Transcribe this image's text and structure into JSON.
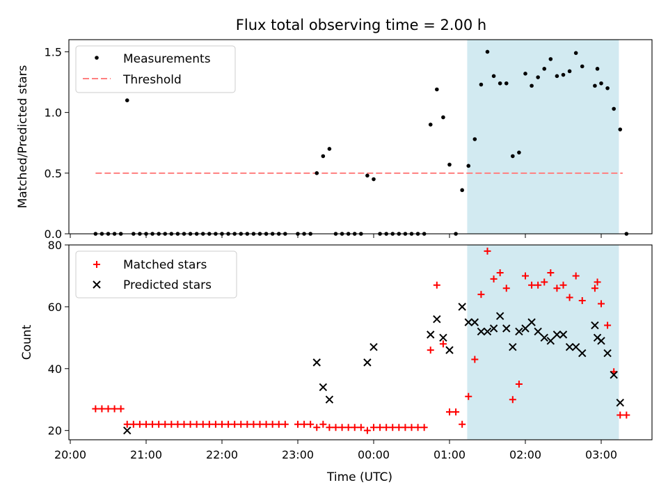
{
  "title": "Flux total observing time = 2.00 h",
  "colors": {
    "span": "#add8e6",
    "threshold": "#ff7f7f",
    "matched": "#ff0000",
    "predicted": "#000000",
    "measurement": "#000000"
  },
  "chart_data": [
    {
      "type": "scatter",
      "ylabel": "Matched/Predicted stars",
      "ylim": [
        0,
        1.6
      ],
      "yticks": [
        0.0,
        0.5,
        1.0,
        1.5
      ],
      "ytick_labels": [
        "0.0",
        "0.5",
        "1.0",
        "1.5"
      ],
      "shaded_span": [
        "01:14",
        "03:14"
      ],
      "threshold": {
        "name": "Threshold",
        "value": 0.5,
        "x_start": "20:20",
        "x_end": "03:17"
      },
      "legend": {
        "placement": "top-left",
        "entries": [
          "Measurements",
          "Threshold"
        ]
      },
      "series": [
        {
          "name": "Measurements",
          "points": [
            [
              "20:20",
              0
            ],
            [
              "20:25",
              0
            ],
            [
              "20:30",
              0
            ],
            [
              "20:35",
              0
            ],
            [
              "20:40",
              0
            ],
            [
              "20:45",
              1.1
            ],
            [
              "20:50",
              0
            ],
            [
              "20:55",
              0
            ],
            [
              "21:00",
              0
            ],
            [
              "21:05",
              0
            ],
            [
              "21:10",
              0
            ],
            [
              "21:15",
              0
            ],
            [
              "21:20",
              0
            ],
            [
              "21:25",
              0
            ],
            [
              "21:30",
              0
            ],
            [
              "21:35",
              0
            ],
            [
              "21:40",
              0
            ],
            [
              "21:45",
              0
            ],
            [
              "21:50",
              0
            ],
            [
              "21:55",
              0
            ],
            [
              "22:00",
              0
            ],
            [
              "22:05",
              0
            ],
            [
              "22:10",
              0
            ],
            [
              "22:15",
              0
            ],
            [
              "22:20",
              0
            ],
            [
              "22:25",
              0
            ],
            [
              "22:30",
              0
            ],
            [
              "22:35",
              0
            ],
            [
              "22:40",
              0
            ],
            [
              "22:45",
              0
            ],
            [
              "22:50",
              0
            ],
            [
              "23:00",
              0
            ],
            [
              "23:05",
              0
            ],
            [
              "23:10",
              0
            ],
            [
              "23:15",
              0.5
            ],
            [
              "23:20",
              0.64
            ],
            [
              "23:25",
              0.7
            ],
            [
              "23:30",
              0
            ],
            [
              "23:35",
              0
            ],
            [
              "23:40",
              0
            ],
            [
              "23:45",
              0
            ],
            [
              "23:50",
              0
            ],
            [
              "23:55",
              0.48
            ],
            [
              "00:00",
              0.45
            ],
            [
              "00:05",
              0
            ],
            [
              "00:10",
              0
            ],
            [
              "00:15",
              0
            ],
            [
              "00:20",
              0
            ],
            [
              "00:25",
              0
            ],
            [
              "00:30",
              0
            ],
            [
              "00:35",
              0
            ],
            [
              "00:40",
              0
            ],
            [
              "00:45",
              0.9
            ],
            [
              "00:50",
              1.19
            ],
            [
              "00:55",
              0.96
            ],
            [
              "01:00",
              0.57
            ],
            [
              "01:05",
              0
            ],
            [
              "01:10",
              0.36
            ],
            [
              "01:15",
              0.56
            ],
            [
              "01:20",
              0.78
            ],
            [
              "01:25",
              1.23
            ],
            [
              "01:30",
              1.5
            ],
            [
              "01:35",
              1.3
            ],
            [
              "01:40",
              1.24
            ],
            [
              "01:45",
              1.24
            ],
            [
              "01:50",
              0.64
            ],
            [
              "01:55",
              0.67
            ],
            [
              "02:00",
              1.32
            ],
            [
              "02:05",
              1.22
            ],
            [
              "02:10",
              1.29
            ],
            [
              "02:15",
              1.36
            ],
            [
              "02:20",
              1.44
            ],
            [
              "02:25",
              1.3
            ],
            [
              "02:30",
              1.31
            ],
            [
              "02:35",
              1.34
            ],
            [
              "02:40",
              1.49
            ],
            [
              "02:45",
              1.38
            ],
            [
              "02:55",
              1.22
            ],
            [
              "02:57",
              1.36
            ],
            [
              "03:00",
              1.24
            ],
            [
              "03:05",
              1.2
            ],
            [
              "03:10",
              1.03
            ],
            [
              "03:15",
              0.86
            ],
            [
              "03:20",
              0
            ]
          ]
        }
      ]
    },
    {
      "type": "scatter",
      "ylabel": "Count",
      "xlabel": "Time (UTC)",
      "ylim": [
        17,
        80
      ],
      "yticks": [
        20,
        40,
        60,
        80
      ],
      "ytick_labels": [
        "20",
        "40",
        "60",
        "80"
      ],
      "xticks": [
        "20:00",
        "21:00",
        "22:00",
        "23:00",
        "00:00",
        "01:00",
        "02:00",
        "03:00"
      ],
      "shaded_span": [
        "01:14",
        "03:14"
      ],
      "legend": {
        "placement": "top-left",
        "entries": [
          "Matched stars",
          "Predicted stars"
        ]
      },
      "series": [
        {
          "name": "Matched stars",
          "marker": "+",
          "points": [
            [
              "20:20",
              27
            ],
            [
              "20:25",
              27
            ],
            [
              "20:30",
              27
            ],
            [
              "20:35",
              27
            ],
            [
              "20:40",
              27
            ],
            [
              "20:45",
              22
            ],
            [
              "20:50",
              22
            ],
            [
              "20:55",
              22
            ],
            [
              "21:00",
              22
            ],
            [
              "21:05",
              22
            ],
            [
              "21:10",
              22
            ],
            [
              "21:15",
              22
            ],
            [
              "21:20",
              22
            ],
            [
              "21:25",
              22
            ],
            [
              "21:30",
              22
            ],
            [
              "21:35",
              22
            ],
            [
              "21:40",
              22
            ],
            [
              "21:45",
              22
            ],
            [
              "21:50",
              22
            ],
            [
              "21:55",
              22
            ],
            [
              "22:00",
              22
            ],
            [
              "22:05",
              22
            ],
            [
              "22:10",
              22
            ],
            [
              "22:15",
              22
            ],
            [
              "22:20",
              22
            ],
            [
              "22:25",
              22
            ],
            [
              "22:30",
              22
            ],
            [
              "22:35",
              22
            ],
            [
              "22:40",
              22
            ],
            [
              "22:45",
              22
            ],
            [
              "22:50",
              22
            ],
            [
              "23:00",
              22
            ],
            [
              "23:05",
              22
            ],
            [
              "23:10",
              22
            ],
            [
              "23:15",
              21
            ],
            [
              "23:20",
              22
            ],
            [
              "23:25",
              21
            ],
            [
              "23:30",
              21
            ],
            [
              "23:35",
              21
            ],
            [
              "23:40",
              21
            ],
            [
              "23:45",
              21
            ],
            [
              "23:50",
              21
            ],
            [
              "23:55",
              20
            ],
            [
              "00:00",
              21
            ],
            [
              "00:05",
              21
            ],
            [
              "00:10",
              21
            ],
            [
              "00:15",
              21
            ],
            [
              "00:20",
              21
            ],
            [
              "00:25",
              21
            ],
            [
              "00:30",
              21
            ],
            [
              "00:35",
              21
            ],
            [
              "00:40",
              21
            ],
            [
              "00:45",
              46
            ],
            [
              "00:50",
              67
            ],
            [
              "00:55",
              48
            ],
            [
              "01:00",
              26
            ],
            [
              "01:05",
              26
            ],
            [
              "01:10",
              22
            ],
            [
              "01:15",
              31
            ],
            [
              "01:20",
              43
            ],
            [
              "01:25",
              64
            ],
            [
              "01:30",
              78
            ],
            [
              "01:35",
              69
            ],
            [
              "01:40",
              71
            ],
            [
              "01:45",
              66
            ],
            [
              "01:50",
              30
            ],
            [
              "01:55",
              35
            ],
            [
              "02:00",
              70
            ],
            [
              "02:05",
              67
            ],
            [
              "02:10",
              67
            ],
            [
              "02:15",
              68
            ],
            [
              "02:20",
              71
            ],
            [
              "02:25",
              66
            ],
            [
              "02:30",
              67
            ],
            [
              "02:35",
              63
            ],
            [
              "02:40",
              70
            ],
            [
              "02:45",
              62
            ],
            [
              "02:55",
              66
            ],
            [
              "02:57",
              68
            ],
            [
              "03:00",
              61
            ],
            [
              "03:05",
              54
            ],
            [
              "03:10",
              39
            ],
            [
              "03:15",
              25
            ],
            [
              "03:20",
              25
            ]
          ]
        },
        {
          "name": "Predicted stars",
          "marker": "x",
          "points": [
            [
              "20:45",
              20
            ],
            [
              "23:15",
              42
            ],
            [
              "23:20",
              34
            ],
            [
              "23:25",
              30
            ],
            [
              "23:55",
              42
            ],
            [
              "00:00",
              47
            ],
            [
              "00:45",
              51
            ],
            [
              "00:50",
              56
            ],
            [
              "00:55",
              50
            ],
            [
              "01:00",
              46
            ],
            [
              "01:10",
              60
            ],
            [
              "01:15",
              55
            ],
            [
              "01:20",
              55
            ],
            [
              "01:25",
              52
            ],
            [
              "01:30",
              52
            ],
            [
              "01:35",
              53
            ],
            [
              "01:40",
              57
            ],
            [
              "01:45",
              53
            ],
            [
              "01:50",
              47
            ],
            [
              "01:55",
              52
            ],
            [
              "02:00",
              53
            ],
            [
              "02:05",
              55
            ],
            [
              "02:10",
              52
            ],
            [
              "02:15",
              50
            ],
            [
              "02:20",
              49
            ],
            [
              "02:25",
              51
            ],
            [
              "02:30",
              51
            ],
            [
              "02:35",
              47
            ],
            [
              "02:40",
              47
            ],
            [
              "02:45",
              45
            ],
            [
              "02:55",
              54
            ],
            [
              "02:57",
              50
            ],
            [
              "03:00",
              49
            ],
            [
              "03:05",
              45
            ],
            [
              "03:10",
              38
            ],
            [
              "03:15",
              29
            ]
          ]
        }
      ]
    }
  ]
}
